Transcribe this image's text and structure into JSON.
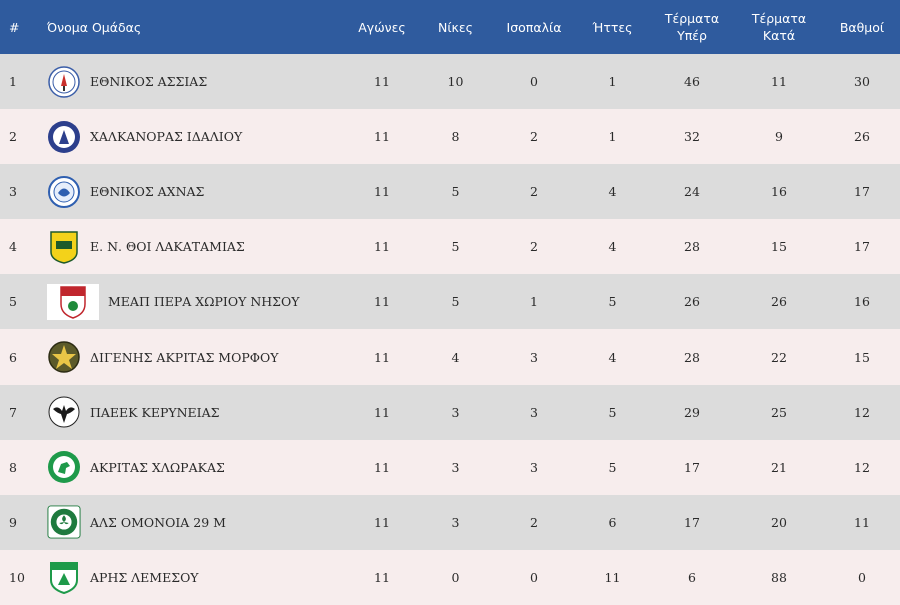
{
  "header": {
    "rank": "#",
    "team": "Όνομα Ομάδας",
    "played": "Αγώνες",
    "wins": "Νίκες",
    "draws": "Ισοπαλία",
    "losses": "Ήττες",
    "goals_for_line1": "Τέρματα",
    "goals_for_line2": "Υπέρ",
    "goals_against_line1": "Τέρματα",
    "goals_against_line2": "Κατά",
    "points": "Βαθμοί"
  },
  "colors": {
    "header_bg": "#2f5b9e",
    "row_odd": "#dcdcdc",
    "row_even": "#f7eded"
  },
  "rows": [
    {
      "rank": "1",
      "team": "ΕΘΝΙΚΟΣ ΑΣΣΙΑΣ",
      "played": "11",
      "wins": "10",
      "draws": "0",
      "losses": "1",
      "gf": "46",
      "ga": "11",
      "pts": "30",
      "logo": "ethnikos-assias-crest-icon"
    },
    {
      "rank": "2",
      "team": "ΧΑΛΚΑΝΟΡΑΣ ΙΔΑΛΙΟΥ",
      "played": "11",
      "wins": "8",
      "draws": "2",
      "losses": "1",
      "gf": "32",
      "ga": "9",
      "pts": "26",
      "logo": "chalkanoras-crest-icon"
    },
    {
      "rank": "3",
      "team": "ΕΘΝΙΚΟΣ ΑΧΝΑΣ",
      "played": "11",
      "wins": "5",
      "draws": "2",
      "losses": "4",
      "gf": "24",
      "ga": "16",
      "pts": "17",
      "logo": "ethnikos-achnas-crest-icon"
    },
    {
      "rank": "4",
      "team": "Ε. Ν. ΘΟΙ ΛΑΚΑΤΑΜΙΑΣ",
      "played": "11",
      "wins": "5",
      "draws": "2",
      "losses": "4",
      "gf": "28",
      "ga": "15",
      "pts": "17",
      "logo": "thoi-lakatamias-crest-icon"
    },
    {
      "rank": "5",
      "team": "ΜΕΑΠ ΠΕΡΑ ΧΩΡΙΟΥ ΝΗΣΟΥ",
      "played": "11",
      "wins": "5",
      "draws": "1",
      "losses": "5",
      "gf": "26",
      "ga": "26",
      "pts": "16",
      "logo": "meap-crest-icon"
    },
    {
      "rank": "6",
      "team": "ΔΙΓΕΝΗΣ ΑΚΡΙΤΑΣ ΜΟΡΦΟΥ",
      "played": "11",
      "wins": "4",
      "draws": "3",
      "losses": "4",
      "gf": "28",
      "ga": "22",
      "pts": "15",
      "logo": "digenis-crest-icon"
    },
    {
      "rank": "7",
      "team": "ΠΑΕΕΚ ΚΕΡΥΝΕΙΑΣ",
      "played": "11",
      "wins": "3",
      "draws": "3",
      "losses": "5",
      "gf": "29",
      "ga": "25",
      "pts": "12",
      "logo": "paeek-crest-icon"
    },
    {
      "rank": "8",
      "team": "ΑΚΡΙΤΑΣ ΧΛΩΡΑΚΑΣ",
      "played": "11",
      "wins": "3",
      "draws": "3",
      "losses": "5",
      "gf": "17",
      "ga": "21",
      "pts": "12",
      "logo": "akritas-crest-icon"
    },
    {
      "rank": "9",
      "team": "ΑΛΣ ΟΜΟΝΟΙΑ 29 Μ",
      "played": "11",
      "wins": "3",
      "draws": "2",
      "losses": "6",
      "gf": "17",
      "ga": "20",
      "pts": "11",
      "logo": "omonoia-crest-icon"
    },
    {
      "rank": "10",
      "team": "ΑΡΗΣ ΛΕΜΕΣΟΥ",
      "played": "11",
      "wins": "0",
      "draws": "0",
      "losses": "11",
      "gf": "6",
      "ga": "88",
      "pts": "0",
      "logo": "aris-crest-icon"
    }
  ]
}
